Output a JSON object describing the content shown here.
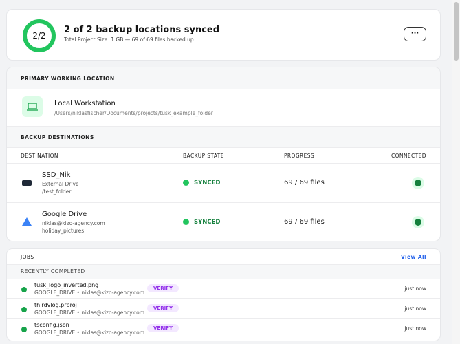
{
  "summary": {
    "ring_label": "2/2",
    "title": "2 of 2 backup locations synced",
    "subtitle": "Total Project Size: 1 GB — 69 of 69 files backed up.",
    "menu": "···"
  },
  "primary": {
    "heading": "PRIMARY WORKING LOCATION",
    "name": "Local Workstation",
    "path": "/Users/niklasfischer/Documents/projects/tusk_example_folder"
  },
  "backups": {
    "heading": "BACKUP DESTINATIONS",
    "columns": [
      "DESTINATION",
      "BACKUP STATE",
      "PROGRESS",
      "CONNECTED"
    ],
    "rows": [
      {
        "name": "SSD_Nik",
        "type": "External Drive",
        "folder": "/test_folder",
        "state": "SYNCED",
        "progress": "69 / 69 files"
      },
      {
        "name": "Google Drive",
        "type": "niklas@kizo-agency.com",
        "folder": "holiday_pictures",
        "state": "SYNCED",
        "progress": "69 / 69 files"
      }
    ]
  },
  "jobs": {
    "title": "JOBS",
    "view_all": "View All",
    "section": "RECENTLY COMPLETED",
    "items": [
      {
        "name": "tusk_logo_inverted.png",
        "detail": "GOOGLE_DRIVE • niklas@kizo-agency.com",
        "badge": "VERIFY",
        "time": "just now"
      },
      {
        "name": "thirdvlog.prproj",
        "detail": "GOOGLE_DRIVE • niklas@kizo-agency.com",
        "badge": "VERIFY",
        "time": "just now"
      },
      {
        "name": "tsconfig.json",
        "detail": "GOOGLE_DRIVE • niklas@kizo-agency.com",
        "badge": "VERIFY",
        "time": "just now"
      }
    ]
  }
}
